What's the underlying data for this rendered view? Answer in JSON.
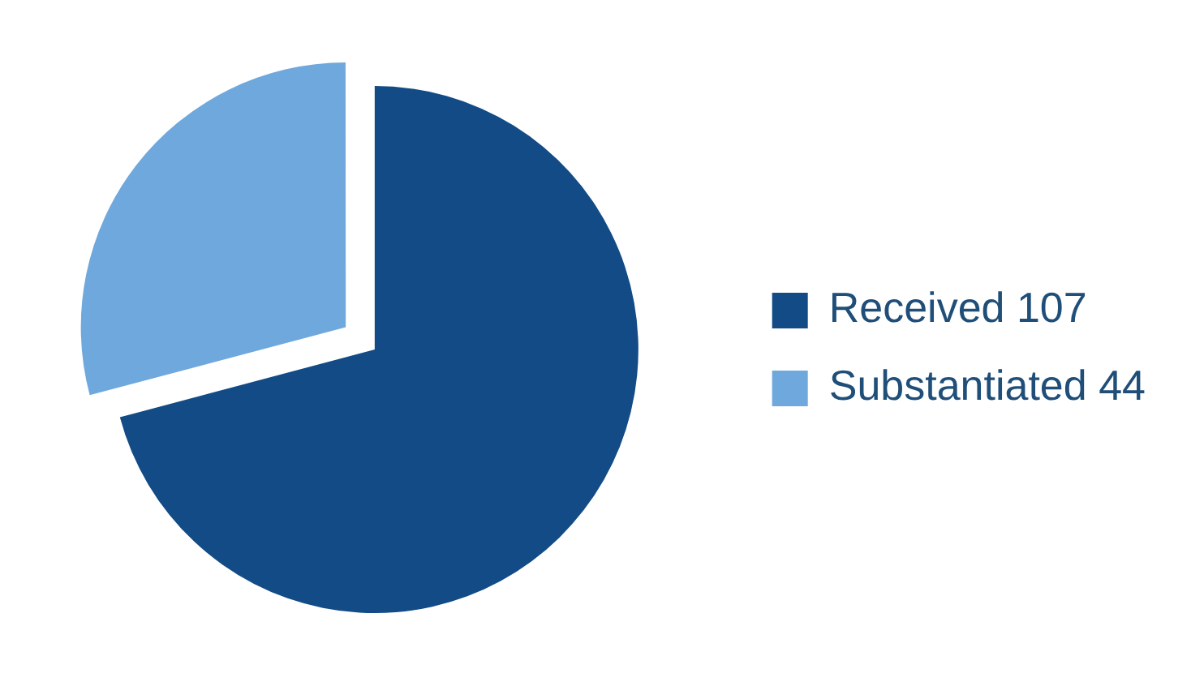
{
  "chart_data": {
    "type": "pie",
    "categories": [
      "Received 107",
      "Substantiated 44"
    ],
    "values": [
      107,
      44
    ],
    "colors": [
      "#124b85",
      "#6fa8dc"
    ],
    "legend": "right"
  }
}
